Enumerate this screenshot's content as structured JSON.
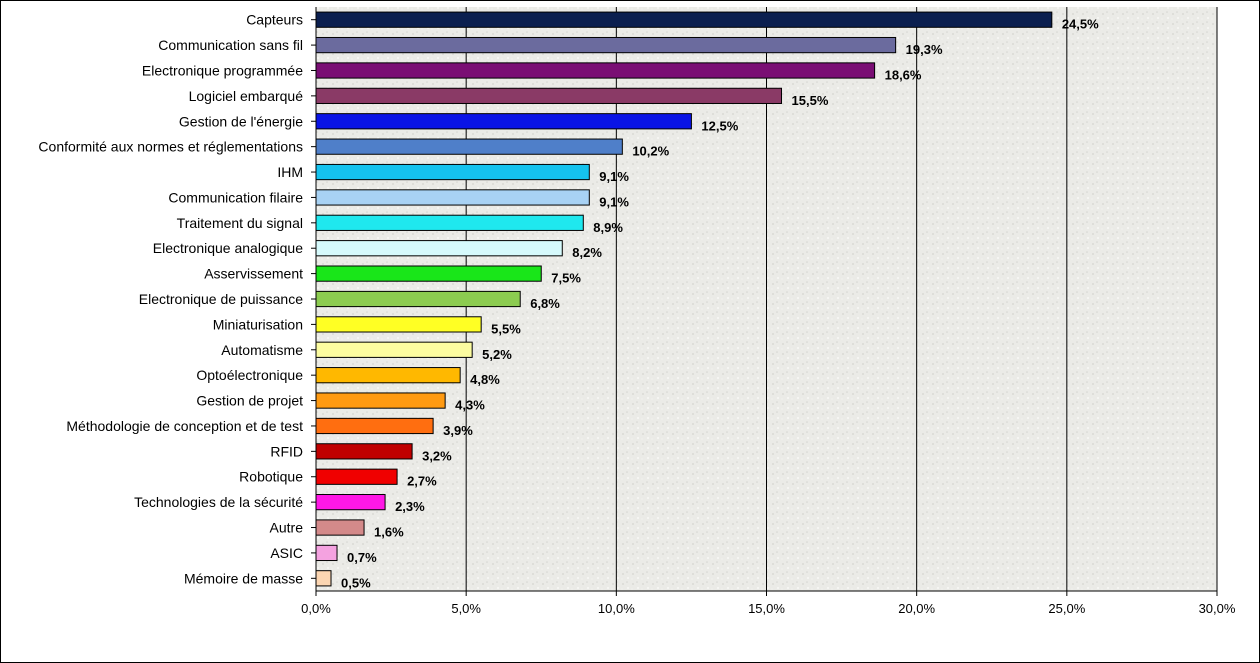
{
  "chart_data": {
    "type": "bar",
    "orientation": "horizontal",
    "title": "",
    "xlabel": "",
    "ylabel": "",
    "xlim": [
      0,
      30
    ],
    "x_ticks": [
      "0,0%",
      "5,0%",
      "10,0%",
      "15,0%",
      "20,0%",
      "25,0%",
      "30,0%"
    ],
    "grid": "vertical",
    "background": "textured light gray",
    "categories": [
      "Capteurs",
      "Communication sans fil",
      "Electronique programmée",
      "Logiciel embarqué",
      "Gestion de l'énergie",
      "Conformité aux normes et réglementations",
      "IHM",
      "Communication filaire",
      "Traitement du signal",
      "Electronique analogique",
      "Asservissement",
      "Electronique de puissance",
      "Miniaturisation",
      "Automatisme",
      "Optoélectronique",
      "Gestion de projet",
      "Méthodologie de conception et de test",
      "RFID",
      "Robotique",
      "Technologies de la sécurité",
      "Autre",
      "ASIC",
      "Mémoire de masse"
    ],
    "values": [
      24.5,
      19.3,
      18.6,
      15.5,
      12.5,
      10.2,
      9.1,
      9.1,
      8.9,
      8.2,
      7.5,
      6.8,
      5.5,
      5.2,
      4.8,
      4.3,
      3.9,
      3.2,
      2.7,
      2.3,
      1.6,
      0.7,
      0.5
    ],
    "value_labels": [
      "24,5%",
      "19,3%",
      "18,6%",
      "15,5%",
      "12,5%",
      "10,2%",
      "9,1%",
      "9,1%",
      "8,9%",
      "8,2%",
      "7,5%",
      "6,8%",
      "5,5%",
      "5,2%",
      "4,8%",
      "4,3%",
      "3,9%",
      "3,2%",
      "2,7%",
      "2,3%",
      "1,6%",
      "0,7%",
      "0,5%"
    ],
    "colors": [
      "#0b1f4f",
      "#6b6b9e",
      "#7a0e74",
      "#8a3a66",
      "#0a14e6",
      "#4f7fc9",
      "#15c2ee",
      "#a8d2f4",
      "#1fe8ee",
      "#d6fafc",
      "#19e619",
      "#8ccc50",
      "#ffff24",
      "#fcfca0",
      "#ffb800",
      "#ff9a12",
      "#ff6e10",
      "#c00000",
      "#f00000",
      "#ff18e6",
      "#d48a8a",
      "#f4a2e0",
      "#fcd6b2"
    ]
  }
}
